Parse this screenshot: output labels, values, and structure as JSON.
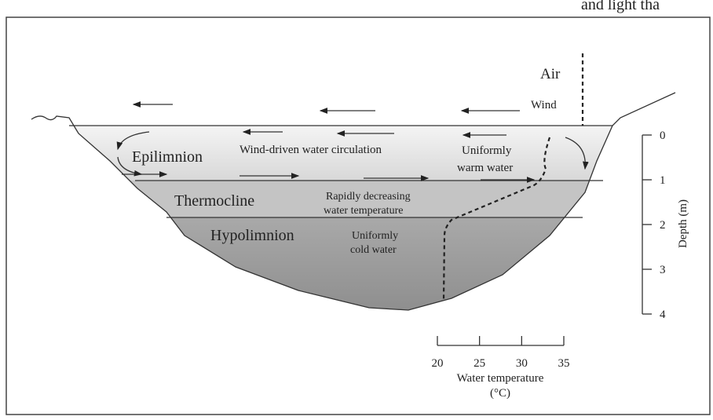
{
  "header_fragment": "and light tha",
  "labels": {
    "air": "Air",
    "wind": "Wind",
    "epilimnion": "Epilimnion",
    "circulation": "Wind-driven water circulation",
    "warm_water": [
      "Uniformly",
      "warm water"
    ],
    "thermocline": "Thermocline",
    "decreasing": [
      "Rapidly decreasing",
      "water temperature"
    ],
    "hypolimnion": "Hypolimnion",
    "cold_water": [
      "Uniformly",
      "cold water"
    ]
  },
  "depth_axis": {
    "title": "Depth (m)",
    "ticks": [
      0,
      1,
      2,
      3,
      4
    ]
  },
  "temperature_axis": {
    "title": [
      "Water temperature",
      "(°C)"
    ],
    "ticks": [
      20,
      25,
      30,
      35
    ]
  }
}
